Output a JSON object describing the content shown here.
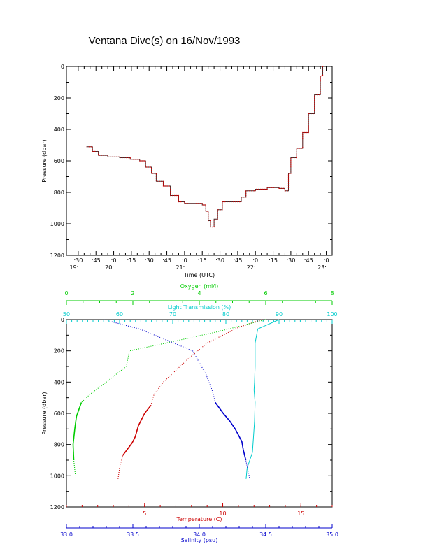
{
  "title": "Ventana Dive(s) on 16/Nov/1993",
  "chart_data": [
    {
      "type": "line",
      "title": "Ventana Dive(s) on 16/Nov/1993",
      "xlabel": "Time (UTC)",
      "ylabel": "Pressure (dbar)",
      "xlim": [
        "19:20",
        "23:05"
      ],
      "ylim": [
        1200,
        0
      ],
      "x_ticks": [
        {
          "min": ":30",
          "hour": "19:"
        },
        {
          "min": ":45",
          "hour": ""
        },
        {
          "min": ":0",
          "hour": "20:"
        },
        {
          "min": ":15",
          "hour": ""
        },
        {
          "min": ":30",
          "hour": ""
        },
        {
          "min": ":45",
          "hour": ""
        },
        {
          "min": ":0",
          "hour": "21:"
        },
        {
          "min": ":15",
          "hour": ""
        },
        {
          "min": ":30",
          "hour": ""
        },
        {
          "min": ":45",
          "hour": ""
        },
        {
          "min": ":0",
          "hour": "22:"
        },
        {
          "min": ":15",
          "hour": ""
        },
        {
          "min": ":30",
          "hour": ""
        },
        {
          "min": ":45",
          "hour": ""
        },
        {
          "min": ":0",
          "hour": "23:"
        }
      ],
      "y_ticks": [
        "0",
        "200",
        "400",
        "600",
        "800",
        "1000",
        "1200"
      ],
      "series": [
        {
          "color": "#cc0000",
          "x": [
            "19:37",
            "19:42",
            "19:47",
            "19:55",
            "20:05",
            "20:10",
            "20:14",
            "20:22",
            "20:27",
            "20:32",
            "20:36",
            "20:42",
            "20:48",
            "20:55",
            "21:00",
            "21:07",
            "21:12",
            "21:15",
            "21:18",
            "21:20",
            "21:22",
            "21:25",
            "21:28",
            "21:32",
            "21:38",
            "21:45",
            "21:48",
            "21:52",
            "22:00",
            "22:10",
            "22:20",
            "22:25",
            "22:28",
            "22:30",
            "22:35",
            "22:40",
            "22:45",
            "22:50",
            "22:55",
            "22:57"
          ],
          "y": [
            510,
            540,
            565,
            575,
            580,
            580,
            590,
            600,
            640,
            680,
            730,
            760,
            820,
            860,
            870,
            870,
            870,
            880,
            920,
            980,
            1020,
            970,
            910,
            860,
            860,
            860,
            830,
            790,
            780,
            770,
            775,
            790,
            680,
            580,
            520,
            420,
            300,
            180,
            60,
            0
          ]
        }
      ]
    },
    {
      "type": "line",
      "ylabel": "Pressure (dbar)",
      "ylim": [
        1200,
        0
      ],
      "y_ticks": [
        "0",
        "200",
        "400",
        "600",
        "800",
        "1000",
        "1200"
      ],
      "axes": [
        {
          "label": "Oxygen (ml/l)",
          "position": "top",
          "color": "#00cc00",
          "range": [
            0,
            8
          ],
          "ticks": [
            "0",
            "2",
            "4",
            "6",
            "8"
          ]
        },
        {
          "label": "Light Transmission (%)",
          "position": "top",
          "color": "#00cccc",
          "range": [
            50,
            100
          ],
          "ticks": [
            "50",
            "60",
            "70",
            "80",
            "90",
            "100"
          ]
        },
        {
          "label": "Temperature (C)",
          "position": "bottom",
          "color": "#cc0000",
          "range": [
            0,
            17
          ],
          "ticks": [
            "5",
            "10",
            "15"
          ]
        },
        {
          "label": "Salinity (psu)",
          "position": "bottom",
          "color": "#0000cc",
          "range": [
            33.0,
            35.0
          ],
          "ticks": [
            "33.0",
            "33.5",
            "34.0",
            "34.5",
            "35.0"
          ]
        }
      ],
      "series": [
        {
          "axis": 2,
          "color": "#cc0000",
          "marker": "dots",
          "x": [
            12.5,
            11.0,
            9.0,
            7.8,
            6.2,
            5.6,
            5.4,
            5.0,
            4.6,
            4.4,
            4.2,
            3.9,
            3.6,
            3.4,
            3.3
          ],
          "y": [
            0,
            50,
            150,
            250,
            400,
            480,
            550,
            600,
            680,
            750,
            790,
            830,
            870,
            950,
            1020
          ]
        },
        {
          "axis": 0,
          "color": "#00cc00",
          "marker": "dots",
          "x": [
            6.0,
            4.5,
            3.0,
            1.9,
            1.8,
            1.2,
            0.7,
            0.45,
            0.3,
            0.25,
            0.2,
            0.22,
            0.28
          ],
          "y": [
            0,
            80,
            150,
            200,
            300,
            400,
            480,
            530,
            620,
            700,
            800,
            900,
            1020
          ]
        },
        {
          "axis": 1,
          "color": "#00cccc",
          "marker": "line",
          "x": [
            90,
            86,
            85.5,
            85.5,
            85.4,
            85.3,
            85.5,
            85.4,
            85.2,
            85.0,
            84.5,
            84.0,
            83.8
          ],
          "y": [
            0,
            60,
            150,
            300,
            400,
            450,
            530,
            650,
            750,
            850,
            900,
            950,
            1020
          ]
        },
        {
          "axis": 3,
          "color": "#0000cc",
          "marker": "dots",
          "x": [
            33.28,
            33.55,
            33.95,
            34.05,
            34.1,
            34.12,
            34.18,
            34.23,
            34.27,
            34.32,
            34.33,
            34.35,
            34.38
          ],
          "y": [
            0,
            60,
            200,
            350,
            460,
            530,
            600,
            650,
            700,
            780,
            830,
            900,
            1020
          ]
        }
      ]
    }
  ]
}
